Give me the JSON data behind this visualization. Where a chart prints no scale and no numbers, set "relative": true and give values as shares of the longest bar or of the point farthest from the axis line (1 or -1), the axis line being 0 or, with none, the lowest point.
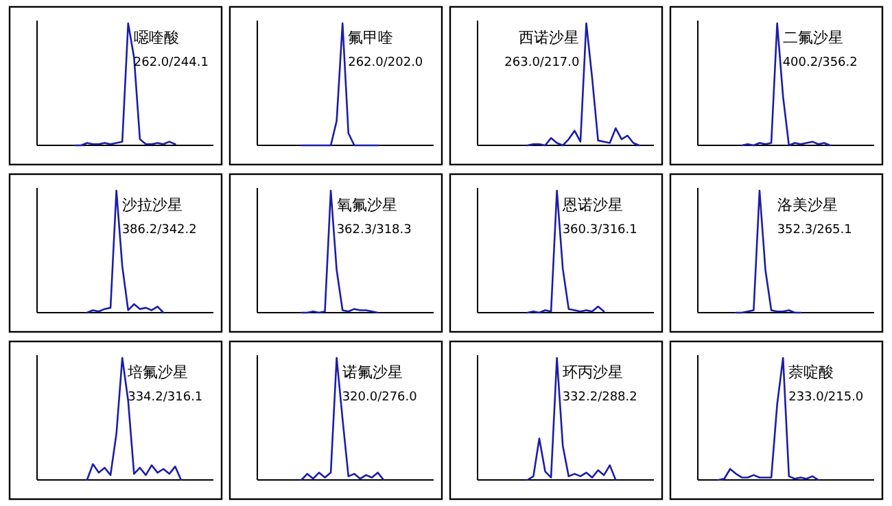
{
  "chart_data": [
    {
      "type": "line",
      "relative": true,
      "categories": [
        null,
        null,
        null,
        null,
        null,
        null,
        null,
        null,
        null,
        null,
        null,
        null,
        null,
        null,
        null,
        null,
        null,
        null,
        null,
        null,
        null,
        null,
        null,
        null,
        null,
        null,
        null,
        null,
        null,
        null
      ],
      "annotations": [
        "噁喹酸",
        "262.0/244.1"
      ],
      "series": [
        {
          "color": "#1c1ca8",
          "values": [
            null,
            null,
            null,
            null,
            null,
            null,
            0,
            0,
            0.02,
            0.01,
            0.01,
            0.02,
            0.01,
            0.02,
            0.03,
            1.0,
            0.72,
            0.05,
            0.01,
            0.01,
            0.02,
            0.01,
            0.03,
            0.01,
            null,
            null,
            null,
            null,
            null,
            null
          ]
        }
      ]
    },
    {
      "type": "line",
      "relative": true,
      "categories": [
        null,
        null,
        null,
        null,
        null,
        null,
        null,
        null,
        null,
        null,
        null,
        null,
        null,
        null,
        null,
        null,
        null,
        null,
        null,
        null,
        null,
        null,
        null,
        null,
        null,
        null,
        null,
        null,
        null,
        null
      ],
      "annotations": [
        "氟甲喹",
        "262.0/202.0"
      ],
      "series": [
        {
          "color": "#1c1ca8",
          "values": [
            null,
            null,
            null,
            null,
            null,
            null,
            null,
            0,
            0,
            0,
            0,
            0,
            0,
            0.2,
            1.0,
            0.1,
            0,
            0,
            0,
            0,
            0,
            null,
            null,
            null,
            null,
            null,
            null,
            null,
            null,
            null
          ]
        }
      ]
    },
    {
      "type": "line",
      "relative": true,
      "categories": [
        null,
        null,
        null,
        null,
        null,
        null,
        null,
        null,
        null,
        null,
        null,
        null,
        null,
        null,
        null,
        null,
        null,
        null,
        null,
        null,
        null,
        null,
        null,
        null,
        null,
        null,
        null,
        null,
        null,
        null
      ],
      "annotations": [
        "西诺沙星",
        "263.0/217.0"
      ],
      "series": [
        {
          "color": "#1c1ca8",
          "values": [
            null,
            null,
            null,
            null,
            null,
            null,
            null,
            null,
            0,
            0.01,
            0.01,
            0,
            0.06,
            0.02,
            0,
            0.05,
            0.12,
            0.03,
            1.0,
            0.55,
            0.04,
            0.03,
            0.02,
            0.14,
            0.05,
            0.08,
            0.02,
            0,
            null,
            null
          ]
        }
      ]
    },
    {
      "type": "line",
      "relative": true,
      "categories": [
        null,
        null,
        null,
        null,
        null,
        null,
        null,
        null,
        null,
        null,
        null,
        null,
        null,
        null,
        null,
        null,
        null,
        null,
        null,
        null,
        null,
        null,
        null,
        null,
        null,
        null,
        null,
        null,
        null,
        null
      ],
      "annotations": [
        "二氟沙星",
        "400.2/356.2"
      ],
      "series": [
        {
          "color": "#1c1ca8",
          "values": [
            null,
            null,
            null,
            null,
            null,
            null,
            null,
            0,
            0.01,
            0,
            0.02,
            0.01,
            0.02,
            1.0,
            0.4,
            0,
            0.02,
            0.01,
            0.02,
            0.03,
            0.01,
            0.02,
            0,
            null,
            null,
            null,
            null,
            null,
            null,
            null
          ]
        }
      ]
    },
    {
      "type": "line",
      "relative": true,
      "categories": [
        null,
        null,
        null,
        null,
        null,
        null,
        null,
        null,
        null,
        null,
        null,
        null,
        null,
        null,
        null,
        null,
        null,
        null,
        null,
        null,
        null,
        null,
        null,
        null,
        null,
        null,
        null,
        null,
        null,
        null
      ],
      "annotations": [
        "沙拉沙星",
        "386.2/342.2"
      ],
      "series": [
        {
          "color": "#1c1ca8",
          "values": [
            null,
            null,
            null,
            null,
            null,
            null,
            null,
            null,
            0,
            0.02,
            0.01,
            0.03,
            0.04,
            1.0,
            0.38,
            0.02,
            0.07,
            0.03,
            0.04,
            0.02,
            0.05,
            0,
            null,
            null,
            null,
            null,
            null,
            null,
            null,
            null
          ]
        }
      ]
    },
    {
      "type": "line",
      "relative": true,
      "categories": [
        null,
        null,
        null,
        null,
        null,
        null,
        null,
        null,
        null,
        null,
        null,
        null,
        null,
        null,
        null,
        null,
        null,
        null,
        null,
        null,
        null,
        null,
        null,
        null,
        null,
        null,
        null,
        null,
        null,
        null
      ],
      "annotations": [
        "氧氟沙星",
        "362.3/318.3"
      ],
      "series": [
        {
          "color": "#1c1ca8",
          "values": [
            null,
            null,
            null,
            null,
            null,
            null,
            null,
            0,
            0,
            0.01,
            0,
            0.01,
            1.0,
            0.35,
            0.02,
            0.01,
            0.03,
            0.02,
            0.02,
            0.01,
            0,
            null,
            null,
            null,
            null,
            null,
            null,
            null,
            null,
            null
          ]
        }
      ]
    },
    {
      "type": "line",
      "relative": true,
      "categories": [
        null,
        null,
        null,
        null,
        null,
        null,
        null,
        null,
        null,
        null,
        null,
        null,
        null,
        null,
        null,
        null,
        null,
        null,
        null,
        null,
        null,
        null,
        null,
        null,
        null,
        null,
        null,
        null,
        null,
        null
      ],
      "annotations": [
        "恩诺沙星",
        "360.3/316.1"
      ],
      "series": [
        {
          "color": "#1c1ca8",
          "values": [
            null,
            null,
            null,
            null,
            null,
            null,
            null,
            null,
            0,
            0.01,
            0,
            0.02,
            0.01,
            1.0,
            0.36,
            0.03,
            0.02,
            0.01,
            0.02,
            0.01,
            0.05,
            0.01,
            null,
            null,
            null,
            null,
            null,
            null,
            null,
            null
          ]
        }
      ]
    },
    {
      "type": "line",
      "relative": true,
      "categories": [
        null,
        null,
        null,
        null,
        null,
        null,
        null,
        null,
        null,
        null,
        null,
        null,
        null,
        null,
        null,
        null,
        null,
        null,
        null,
        null,
        null,
        null,
        null,
        null,
        null,
        null,
        null,
        null,
        null,
        null
      ],
      "annotations": [
        "洛美沙星",
        "352.3/265.1"
      ],
      "series": [
        {
          "color": "#1c1ca8",
          "values": [
            null,
            null,
            null,
            null,
            null,
            null,
            0,
            0,
            0.01,
            0.02,
            1.0,
            0.35,
            0.02,
            0.01,
            0.01,
            0.02,
            0,
            0,
            null,
            null,
            null,
            null,
            null,
            null,
            null,
            null,
            null,
            null,
            null,
            null
          ]
        }
      ]
    },
    {
      "type": "line",
      "relative": true,
      "categories": [
        null,
        null,
        null,
        null,
        null,
        null,
        null,
        null,
        null,
        null,
        null,
        null,
        null,
        null,
        null,
        null,
        null,
        null,
        null,
        null,
        null,
        null,
        null,
        null,
        null,
        null,
        null,
        null,
        null,
        null
      ],
      "annotations": [
        "培氟沙星",
        "334.2/316.1"
      ],
      "series": [
        {
          "color": "#1c1ca8",
          "values": [
            null,
            null,
            null,
            null,
            null,
            null,
            null,
            null,
            0,
            0.13,
            0.06,
            0.1,
            0.04,
            0.38,
            1.0,
            0.65,
            0.05,
            0.1,
            0.04,
            0.12,
            0.06,
            0.09,
            0.05,
            0.11,
            0,
            null,
            null,
            null,
            null,
            null
          ]
        }
      ]
    },
    {
      "type": "line",
      "relative": true,
      "categories": [
        null,
        null,
        null,
        null,
        null,
        null,
        null,
        null,
        null,
        null,
        null,
        null,
        null,
        null,
        null,
        null,
        null,
        null,
        null,
        null,
        null,
        null,
        null,
        null,
        null,
        null,
        null,
        null,
        null,
        null
      ],
      "annotations": [
        "诺氟沙星",
        "320.0/276.0"
      ],
      "series": [
        {
          "color": "#1c1ca8",
          "values": [
            null,
            null,
            null,
            null,
            null,
            null,
            null,
            0,
            0.05,
            0.01,
            0.06,
            0.02,
            0.06,
            1.0,
            0.5,
            0.03,
            0.05,
            0.01,
            0.04,
            0.02,
            0.06,
            0,
            null,
            null,
            null,
            null,
            null,
            null,
            null,
            null
          ]
        }
      ]
    },
    {
      "type": "line",
      "relative": true,
      "categories": [
        null,
        null,
        null,
        null,
        null,
        null,
        null,
        null,
        null,
        null,
        null,
        null,
        null,
        null,
        null,
        null,
        null,
        null,
        null,
        null,
        null,
        null,
        null,
        null,
        null,
        null,
        null,
        null,
        null,
        null
      ],
      "annotations": [
        "环丙沙星",
        "332.2/288.2"
      ],
      "series": [
        {
          "color": "#1c1ca8",
          "values": [
            null,
            null,
            null,
            null,
            null,
            null,
            null,
            null,
            0,
            0.03,
            0.34,
            0.07,
            0.02,
            1.0,
            0.28,
            0.03,
            0.05,
            0.03,
            0.06,
            0.02,
            0.08,
            0.04,
            0.12,
            0,
            null,
            null,
            null,
            null,
            null,
            null
          ]
        }
      ]
    },
    {
      "type": "line",
      "relative": true,
      "categories": [
        null,
        null,
        null,
        null,
        null,
        null,
        null,
        null,
        null,
        null,
        null,
        null,
        null,
        null,
        null,
        null,
        null,
        null,
        null,
        null,
        null,
        null,
        null,
        null,
        null,
        null,
        null,
        null,
        null,
        null
      ],
      "annotations": [
        "萘啶酸",
        "233.0/215.0"
      ],
      "series": [
        {
          "color": "#1c1ca8",
          "values": [
            null,
            null,
            null,
            0,
            0.01,
            0.09,
            0.05,
            0.02,
            0.02,
            0.04,
            0.02,
            0.02,
            0.02,
            0.62,
            1.0,
            0.03,
            0.01,
            0.02,
            0.01,
            0.03,
            0,
            null,
            null,
            null,
            null,
            null,
            null,
            null,
            null,
            null
          ]
        }
      ]
    }
  ]
}
